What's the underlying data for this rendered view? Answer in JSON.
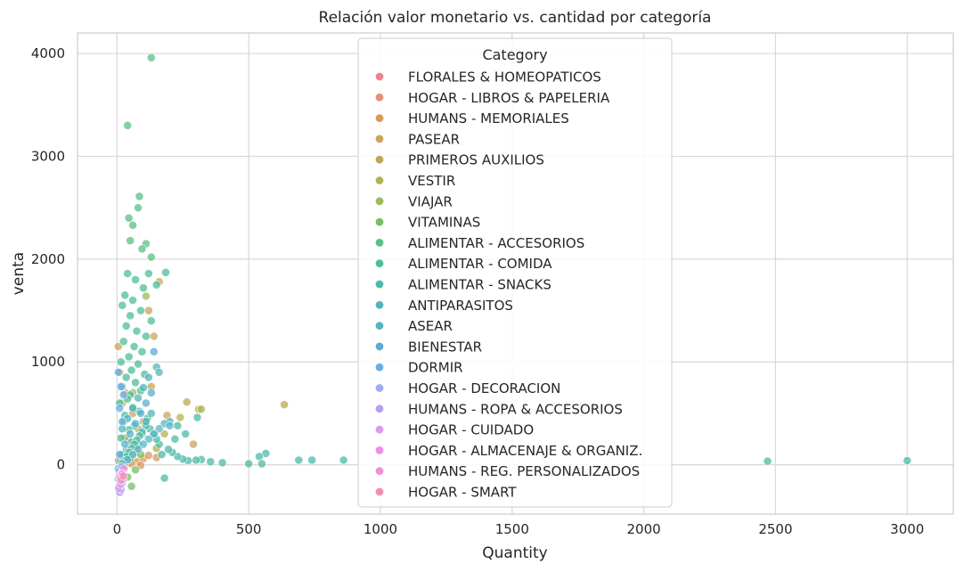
{
  "chart_data": {
    "type": "scatter",
    "title": "Relación valor monetario vs. cantidad por categoría",
    "xlabel": "Quantity",
    "ylabel": "venta",
    "xlim": [
      -150,
      3175
    ],
    "ylim": [
      -480,
      4200
    ],
    "xticks": [
      0,
      500,
      1000,
      1500,
      2000,
      2500,
      3000
    ],
    "yticks": [
      0,
      1000,
      2000,
      3000,
      4000
    ],
    "grid": true,
    "legend": {
      "title": "Category",
      "placement": "top-center"
    },
    "series": [
      {
        "name": "FLORALES & HOMEOPATICOS",
        "color": "#f0828c",
        "points": [
          [
            8,
            -5
          ],
          [
            12,
            15
          ],
          [
            20,
            -40
          ],
          [
            5,
            30
          ],
          [
            15,
            10
          ]
        ]
      },
      {
        "name": "HOGAR - LIBROS & PAPELERIA",
        "color": "#e8907a",
        "points": [
          [
            10,
            -20
          ],
          [
            18,
            -60
          ],
          [
            25,
            5
          ],
          [
            30,
            -10
          ],
          [
            6,
            40
          ]
        ]
      },
      {
        "name": "HUMANS - MEMORIALES",
        "color": "#d99a5c",
        "points": [
          [
            40,
            20
          ],
          [
            60,
            50
          ],
          [
            80,
            30
          ],
          [
            100,
            60
          ],
          [
            120,
            90
          ],
          [
            150,
            70
          ],
          [
            55,
            10
          ],
          [
            90,
            -5
          ]
        ]
      },
      {
        "name": "PASEAR",
        "color": "#c9a45a",
        "points": [
          [
            5,
            1150
          ],
          [
            10,
            900
          ],
          [
            30,
            700
          ],
          [
            60,
            500
          ],
          [
            100,
            420
          ],
          [
            130,
            760
          ],
          [
            160,
            1780
          ],
          [
            140,
            1250
          ],
          [
            190,
            480
          ],
          [
            290,
            200
          ],
          [
            120,
            1500
          ],
          [
            20,
            600
          ]
        ]
      },
      {
        "name": "PRIMEROS AUXILIOS",
        "color": "#b8a955",
        "points": [
          [
            635,
            585
          ],
          [
            265,
            610
          ],
          [
            80,
            350
          ],
          [
            40,
            250
          ],
          [
            150,
            160
          ]
        ]
      },
      {
        "name": "VESTIR",
        "color": "#b0b553",
        "points": [
          [
            310,
            540
          ],
          [
            320,
            540
          ],
          [
            240,
            460
          ],
          [
            180,
            300
          ],
          [
            70,
            120
          ],
          [
            50,
            80
          ]
        ]
      },
      {
        "name": "VIAJAR",
        "color": "#9dba5f",
        "points": [
          [
            110,
            1640
          ],
          [
            60,
            700
          ],
          [
            30,
            260
          ],
          [
            80,
            200
          ],
          [
            20,
            90
          ]
        ]
      },
      {
        "name": "VITAMINAS",
        "color": "#78bd64",
        "points": [
          [
            55,
            -210
          ],
          [
            40,
            -120
          ],
          [
            70,
            -50
          ],
          [
            30,
            20
          ],
          [
            90,
            100
          ]
        ]
      },
      {
        "name": "ALIMENTAR - ACCESORIOS",
        "color": "#5cc084",
        "points": [
          [
            130,
            3960
          ],
          [
            40,
            3300
          ],
          [
            85,
            2610
          ],
          [
            80,
            2500
          ],
          [
            45,
            2400
          ],
          [
            60,
            2330
          ],
          [
            110,
            2150
          ],
          [
            50,
            2180
          ],
          [
            95,
            2100
          ],
          [
            130,
            2020
          ]
        ]
      },
      {
        "name": "ALIMENTAR - COMIDA",
        "color": "#4fbf95",
        "points": [
          [
            185,
            1870
          ],
          [
            120,
            1860
          ],
          [
            40,
            1860
          ],
          [
            150,
            1750
          ],
          [
            30,
            1650
          ],
          [
            70,
            1800
          ],
          [
            100,
            1720
          ],
          [
            60,
            1600
          ],
          [
            20,
            1550
          ],
          [
            90,
            1500
          ],
          [
            50,
            1450
          ],
          [
            130,
            1400
          ],
          [
            35,
            1350
          ],
          [
            75,
            1300
          ],
          [
            110,
            1250
          ],
          [
            25,
            1200
          ],
          [
            65,
            1150
          ],
          [
            95,
            1100
          ],
          [
            45,
            1050
          ],
          [
            15,
            1000
          ],
          [
            80,
            980
          ],
          [
            55,
            920
          ],
          [
            105,
            880
          ],
          [
            35,
            850
          ],
          [
            70,
            800
          ],
          [
            20,
            760
          ],
          [
            90,
            720
          ],
          [
            50,
            680
          ],
          [
            40,
            640
          ],
          [
            10,
            600
          ],
          [
            60,
            560
          ],
          [
            85,
            520
          ],
          [
            30,
            480
          ],
          [
            115,
            450
          ],
          [
            25,
            420
          ],
          [
            65,
            380
          ],
          [
            45,
            340
          ],
          [
            95,
            300
          ],
          [
            15,
            260
          ],
          [
            55,
            220
          ],
          [
            75,
            180
          ],
          [
            35,
            140
          ],
          [
            20,
            100
          ],
          [
            50,
            60
          ],
          [
            10,
            20
          ]
        ]
      },
      {
        "name": "ALIMENTAR - SNACKS",
        "color": "#4dbaa8",
        "points": [
          [
            2470,
            35
          ],
          [
            3000,
            40
          ],
          [
            860,
            45
          ],
          [
            740,
            45
          ],
          [
            690,
            45
          ],
          [
            565,
            110
          ],
          [
            540,
            80
          ],
          [
            550,
            10
          ],
          [
            500,
            10
          ],
          [
            400,
            20
          ],
          [
            355,
            30
          ],
          [
            320,
            50
          ],
          [
            300,
            45
          ],
          [
            270,
            40
          ],
          [
            250,
            55
          ],
          [
            230,
            80
          ],
          [
            210,
            120
          ],
          [
            195,
            150
          ],
          [
            180,
            -130
          ],
          [
            170,
            100
          ],
          [
            160,
            200
          ],
          [
            150,
            250
          ],
          [
            140,
            300
          ],
          [
            125,
            350
          ],
          [
            110,
            380
          ],
          [
            95,
            320
          ],
          [
            85,
            280
          ],
          [
            75,
            240
          ],
          [
            65,
            200
          ],
          [
            55,
            160
          ],
          [
            45,
            120
          ],
          [
            35,
            80
          ],
          [
            25,
            40
          ],
          [
            15,
            0
          ],
          [
            5,
            -40
          ],
          [
            305,
            460
          ],
          [
            230,
            380
          ],
          [
            200,
            420
          ],
          [
            260,
            300
          ],
          [
            220,
            250
          ]
        ]
      },
      {
        "name": "ANTIPARASITOS",
        "color": "#53b4bb",
        "points": [
          [
            150,
            950
          ],
          [
            160,
            900
          ],
          [
            120,
            850
          ],
          [
            100,
            750
          ],
          [
            80,
            650
          ],
          [
            60,
            550
          ],
          [
            40,
            450
          ],
          [
            20,
            350
          ],
          [
            130,
            500
          ],
          [
            110,
            420
          ]
        ]
      },
      {
        "name": "ASEAR",
        "color": "#5ab4c6",
        "points": [
          [
            180,
            400
          ],
          [
            160,
            350
          ],
          [
            140,
            300
          ],
          [
            120,
            250
          ],
          [
            100,
            200
          ],
          [
            80,
            150
          ],
          [
            60,
            100
          ],
          [
            40,
            50
          ],
          [
            20,
            10
          ],
          [
            200,
            380
          ]
        ]
      },
      {
        "name": "BIENESTAR",
        "color": "#5aadd3",
        "points": [
          [
            140,
            1100
          ],
          [
            130,
            700
          ],
          [
            110,
            600
          ],
          [
            90,
            500
          ],
          [
            70,
            400
          ],
          [
            50,
            300
          ],
          [
            30,
            200
          ],
          [
            10,
            100
          ]
        ]
      },
      {
        "name": "DORMIR",
        "color": "#6aaee6",
        "points": [
          [
            5,
            900
          ],
          [
            15,
            760
          ],
          [
            25,
            680
          ],
          [
            10,
            550
          ],
          [
            20,
            420
          ]
        ]
      },
      {
        "name": "HOGAR - DECORACION",
        "color": "#9eaef0",
        "points": [
          [
            5,
            -140
          ],
          [
            12,
            -100
          ],
          [
            8,
            -60
          ],
          [
            18,
            -20
          ]
        ]
      },
      {
        "name": "HUMANS - ROPA & ACCESORIOS",
        "color": "#b69ef0",
        "points": [
          [
            10,
            -270
          ],
          [
            15,
            -240
          ],
          [
            8,
            -200
          ],
          [
            20,
            -180
          ],
          [
            12,
            -160
          ]
        ]
      },
      {
        "name": "HOGAR - CUIDADO",
        "color": "#d59cf0",
        "points": [
          [
            6,
            -230
          ],
          [
            14,
            -190
          ],
          [
            22,
            -150
          ]
        ]
      },
      {
        "name": "HOGAR - ALMACENAJE & ORGANIZ.",
        "color": "#ee8ee8",
        "points": [
          [
            10,
            -100
          ],
          [
            18,
            -80
          ],
          [
            26,
            -40
          ]
        ]
      },
      {
        "name": "HUMANS - REG. PERSONALIZADOS",
        "color": "#ef8fd4",
        "points": [
          [
            12,
            -120
          ],
          [
            20,
            -90
          ]
        ]
      },
      {
        "name": "HOGAR - SMART",
        "color": "#f08fb6",
        "points": [
          [
            16,
            -150
          ],
          [
            24,
            -110
          ]
        ]
      }
    ]
  }
}
